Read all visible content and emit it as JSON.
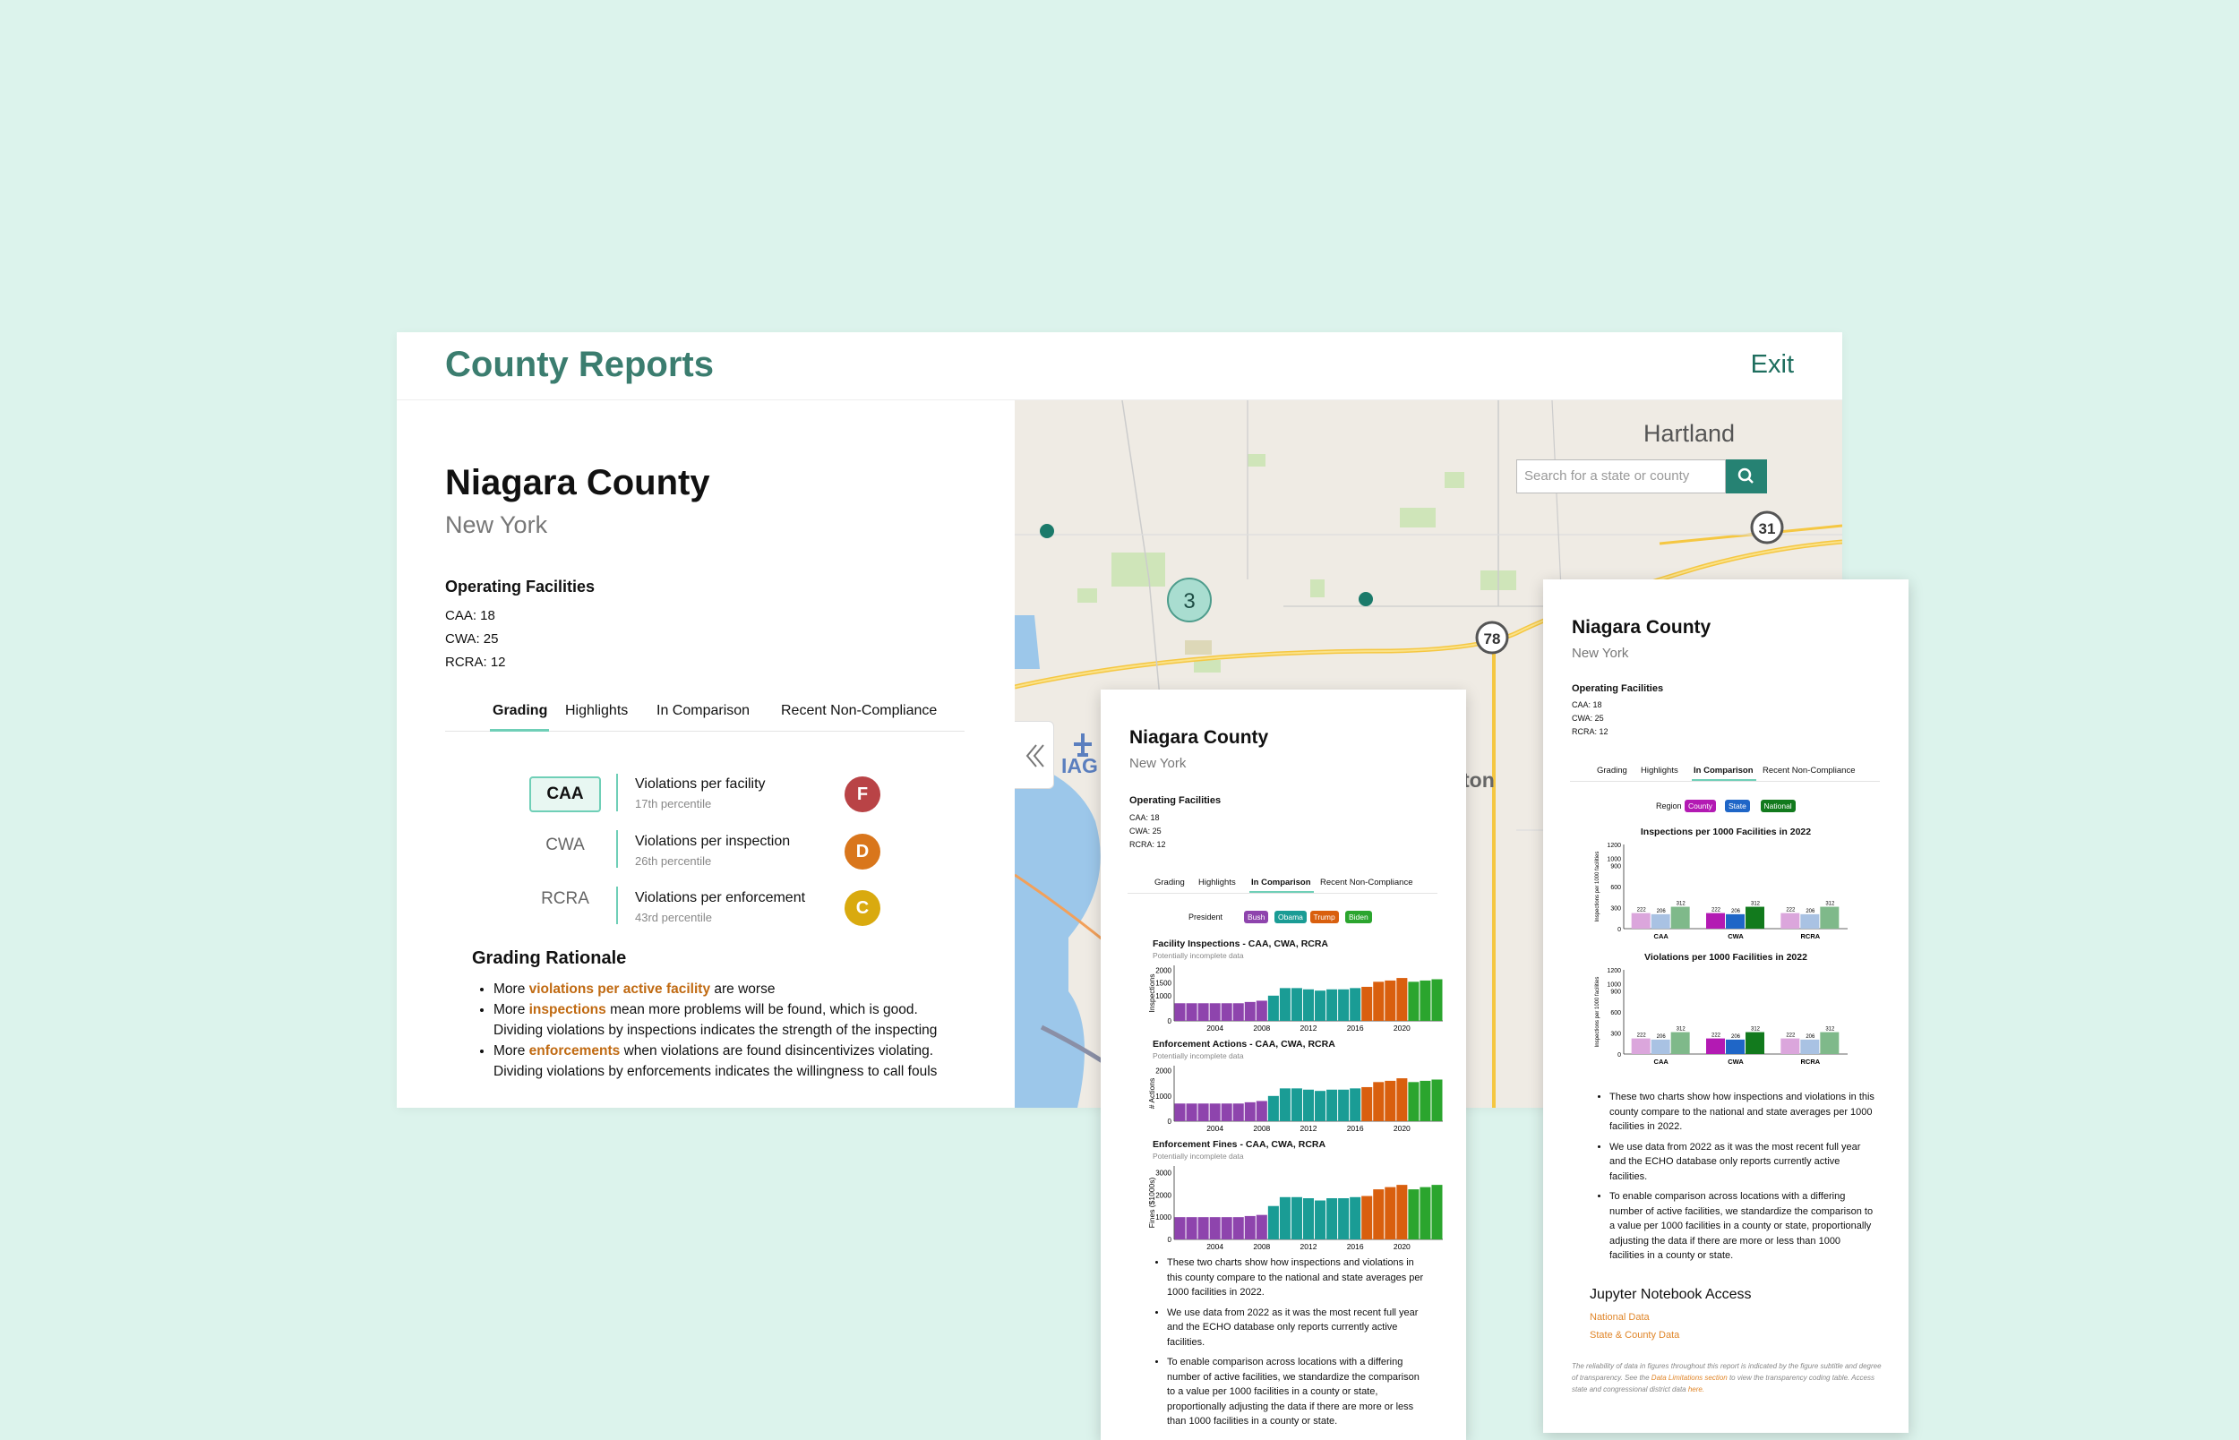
{
  "app": {
    "title": "County Reports",
    "exit_label": "Exit"
  },
  "county": {
    "name": "Niagara County",
    "state": "New York"
  },
  "facilities": {
    "title": "Operating Facilities",
    "lines": [
      "CAA: 18",
      "CWA: 25",
      "RCRA: 12"
    ]
  },
  "tabs": [
    "Grading",
    "Highlights",
    "In Comparison",
    "Recent Non-Compliance"
  ],
  "grading": {
    "programs": [
      "CAA",
      "CWA",
      "RCRA"
    ],
    "metrics": [
      {
        "label": "Violations per facility",
        "sub": "17th percentile",
        "grade": "F",
        "color": "#b94346"
      },
      {
        "label": "Violations per inspection",
        "sub": "26th percentile",
        "grade": "D",
        "color": "#d9761c"
      },
      {
        "label": "Violations per enforcement",
        "sub": "43rd percentile",
        "grade": "C",
        "color": "#d9aa0f"
      }
    ]
  },
  "rationale": {
    "title": "Grading Rationale",
    "items": [
      {
        "pre": "More ",
        "hl": "violations per active facility",
        "post": " are worse"
      },
      {
        "pre": "More ",
        "hl": "inspections",
        "post": " mean more problems will be found, which is good. Dividing violations by inspections indicates the strength of the inspecting"
      },
      {
        "pre": "More ",
        "hl": "enforcements",
        "post": " when violations are found disincentivizes violating. Dividing violations by enforcements indicates the willingness to call fouls"
      }
    ]
  },
  "map": {
    "search_placeholder": "Search for a state or county",
    "labels": {
      "town": "Hartland",
      "airport": "IAG",
      "partial": "ton"
    },
    "cluster_count": "3",
    "routes": [
      "31",
      "78"
    ]
  },
  "card1": {
    "legend_label": "President",
    "legend": [
      {
        "name": "Bush",
        "color": "#8e44ad"
      },
      {
        "name": "Obama",
        "color": "#1a9c95"
      },
      {
        "name": "Trump",
        "color": "#d95f0e"
      },
      {
        "name": "Biden",
        "color": "#2ba52e"
      }
    ],
    "bullets": [
      "These two charts show how inspections and violations in this county compare to the national and state averages per 1000 facilities in 2022.",
      "We use data from 2022 as it was the most recent full year and the ECHO database only reports currently active facilities.",
      "To enable comparison across locations with a differing number of active facilities, we standardize the comparison to a value per 1000 facilities in a county or state, proportionally adjusting the data if there are more or less than 1000 facilities in a county or state."
    ]
  },
  "card2": {
    "legend_label": "Region",
    "legend": [
      {
        "name": "County",
        "color": "#b31ab3"
      },
      {
        "name": "State",
        "color": "#1f66c7"
      },
      {
        "name": "National",
        "color": "#127a1d"
      }
    ],
    "bullets": [
      "These two charts show how inspections and violations in this county compare to the national and state averages per 1000 facilities in 2022.",
      "We use data from 2022 as it was the most recent full year and the ECHO database only reports currently active facilities.",
      "To enable comparison across locations with a differing number of active facilities, we standardize the comparison to a value per 1000 facilities in a county or state, proportionally adjusting the data if there are more or less than 1000 facilities in a county or state."
    ],
    "jupyter_title": "Jupyter Notebook Access",
    "jupyter_links": [
      "National Data",
      "State & County Data"
    ],
    "fine_print": {
      "pre": "The reliability of data in figures throughout this report is indicated by the figure subtitle and degree of transparency. See the ",
      "link": "Data Limitations section",
      "mid": " to view the transparency coding table. Access state and congressional district data ",
      "link2": "here."
    }
  },
  "chart_data": [
    {
      "type": "bar",
      "title": "Facility Inspections - CAA, CWA, RCRA",
      "subtitle": "Potentially incomplete data",
      "ylabel": "Inspections",
      "x": [
        2001,
        2002,
        2003,
        2004,
        2005,
        2006,
        2007,
        2008,
        2009,
        2010,
        2011,
        2012,
        2013,
        2014,
        2015,
        2016,
        2017,
        2018,
        2019,
        2020,
        2021,
        2022,
        2023
      ],
      "values": [
        700,
        700,
        700,
        700,
        700,
        700,
        750,
        800,
        1000,
        1300,
        1300,
        1250,
        1200,
        1250,
        1250,
        1300,
        1350,
        1550,
        1600,
        1700,
        1550,
        1600,
        1650
      ],
      "ylim": [
        0,
        2200
      ],
      "yticks": [
        0,
        1000,
        1500,
        2000
      ],
      "xticks": [
        2004,
        2008,
        2012,
        2016,
        2020
      ]
    },
    {
      "type": "bar",
      "title": "Enforcement Actions - CAA, CWA, RCRA",
      "subtitle": "Potentially incomplete data",
      "ylabel": "# Actions",
      "x": [
        2001,
        2002,
        2003,
        2004,
        2005,
        2006,
        2007,
        2008,
        2009,
        2010,
        2011,
        2012,
        2013,
        2014,
        2015,
        2016,
        2017,
        2018,
        2019,
        2020,
        2021,
        2022,
        2023
      ],
      "values": [
        700,
        700,
        700,
        700,
        700,
        700,
        750,
        800,
        1000,
        1300,
        1300,
        1250,
        1200,
        1250,
        1250,
        1300,
        1350,
        1550,
        1600,
        1700,
        1550,
        1600,
        1650
      ],
      "ylim": [
        0,
        2200
      ],
      "yticks": [
        0,
        1000,
        2000
      ],
      "xticks": [
        2004,
        2008,
        2012,
        2016,
        2020
      ]
    },
    {
      "type": "bar",
      "title": "Enforcement Fines - CAA, CWA, RCRA",
      "subtitle": "Potentially incomplete data",
      "ylabel": "Fines ($1000s)",
      "x": [
        2001,
        2002,
        2003,
        2004,
        2005,
        2006,
        2007,
        2008,
        2009,
        2010,
        2011,
        2012,
        2013,
        2014,
        2015,
        2016,
        2017,
        2018,
        2019,
        2020,
        2021,
        2022,
        2023
      ],
      "values": [
        1000,
        1000,
        1000,
        1000,
        1000,
        1000,
        1050,
        1100,
        1500,
        1900,
        1900,
        1850,
        1750,
        1850,
        1850,
        1900,
        1950,
        2250,
        2350,
        2450,
        2250,
        2350,
        2450
      ],
      "ylim": [
        0,
        3300
      ],
      "yticks": [
        0,
        1000,
        2000,
        3000
      ],
      "xticks": [
        2004,
        2008,
        2012,
        2016,
        2020
      ]
    },
    {
      "type": "bar",
      "title": "Inspections per 1000 Facilities in 2022",
      "ylabel": "Inspections per 1000 facilities",
      "categories": [
        "CAA",
        "CWA",
        "RCRA"
      ],
      "series": [
        {
          "name": "County",
          "values": [
            222,
            222,
            222
          ]
        },
        {
          "name": "State",
          "values": [
            206,
            206,
            206
          ]
        },
        {
          "name": "National",
          "values": [
            312,
            312,
            312
          ]
        }
      ],
      "ylim": [
        0,
        1200
      ],
      "yticks": [
        0,
        300,
        600,
        900,
        1000,
        1200
      ]
    },
    {
      "type": "bar",
      "title": "Violations per 1000 Facilities in 2022",
      "ylabel": "Inspections per 1000 facilities",
      "categories": [
        "CAA",
        "CWA",
        "RCRA"
      ],
      "series": [
        {
          "name": "County",
          "values": [
            222,
            222,
            222
          ]
        },
        {
          "name": "State",
          "values": [
            206,
            206,
            206
          ]
        },
        {
          "name": "National",
          "values": [
            312,
            312,
            312
          ]
        }
      ],
      "ylim": [
        0,
        1200
      ],
      "yticks": [
        0,
        300,
        600,
        900,
        1000,
        1200
      ]
    }
  ]
}
